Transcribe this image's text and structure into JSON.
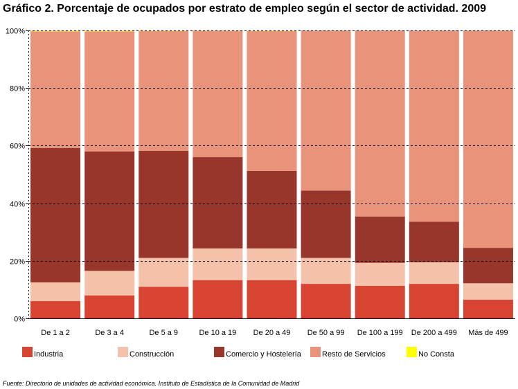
{
  "title": "Gráfico 2. Porcentaje de ocupados por estrato de empleo según el sector de actividad. 2009",
  "source": "Fuente: Directorio de unidades de actividad económica. Instituto de Estadística de la Comunidad de Madrid",
  "chart_data": {
    "type": "bar",
    "stacked": true,
    "percent": true,
    "categories": [
      "De 1 a 2",
      "De 3 a 4",
      "De 5 a 9",
      "De 10 a 19",
      "De 20 a 49",
      "De 50 a 99",
      "De 100 a 199",
      "De 200 a 499",
      "Más de 499"
    ],
    "y_ticks": [
      "0%",
      "20%",
      "40%",
      "60%",
      "80%",
      "100%"
    ],
    "ylim": [
      0,
      100
    ],
    "grid": true,
    "legend_position": "bottom",
    "series": [
      {
        "name": "Industria",
        "color": "#d84432",
        "values": [
          6,
          8,
          11,
          13.3,
          13.3,
          12,
          11.3,
          12,
          6.5
        ]
      },
      {
        "name": "Construcción",
        "color": "#f4c2ab",
        "values": [
          6.5,
          8.5,
          10,
          11,
          11,
          9,
          8,
          7.5,
          5.7
        ]
      },
      {
        "name": "Comercio y Hostelería",
        "color": "#98362c",
        "values": [
          46.7,
          41.5,
          37.2,
          31.7,
          26.9,
          23.4,
          16.1,
          14.1,
          12.3
        ]
      },
      {
        "name": "Resto de Servicios",
        "color": "#e8937a",
        "values": [
          40.5,
          41.7,
          41.6,
          43.9,
          48.6,
          55.6,
          64.6,
          66.4,
          75.5
        ]
      },
      {
        "name": "No Consta",
        "color": "#ffff00",
        "values": [
          0.3,
          0.3,
          0.2,
          0.1,
          0.2,
          0,
          0,
          0,
          0
        ]
      }
    ]
  }
}
